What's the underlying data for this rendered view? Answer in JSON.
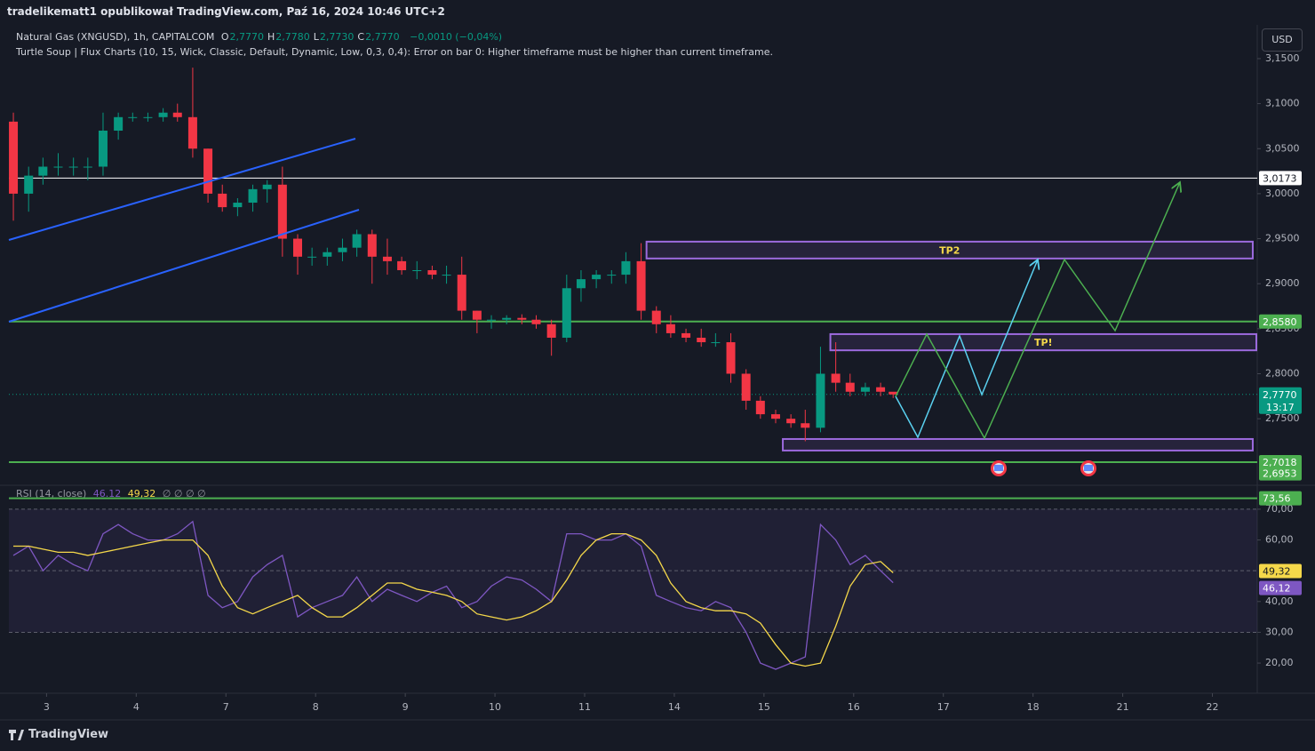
{
  "header": {
    "publisher": "tradelikematt1 opublikował TradingView.com, Paź 16, 2024 10:46 UTC+2",
    "currency": "USD",
    "brand": "TradingView"
  },
  "chart_data": [
    {
      "type": "candlestick",
      "title": "Natural Gas (XNGUSD), 1h, CAPITALCOM",
      "legend": [
        {
          "key": "O",
          "value": "2,7770"
        },
        {
          "key": "H",
          "value": "2,7780"
        },
        {
          "key": "L",
          "value": "2,7730"
        },
        {
          "key": "C",
          "value": "2,7770"
        }
      ],
      "change": "−0,0010 (−0,04%)",
      "indicator": "Turtle Soup | Flux Charts (10, 15, Wick, Classic, Default, Dynamic, Low, 0,3, 0,4): Error on bar 0: Higher timeframe must be higher than current timeframe.",
      "up_color": "#089981",
      "down_color": "#f23645",
      "x": [
        -0.37,
        -0.2,
        -0.04,
        0.13,
        0.3,
        0.46,
        0.63,
        0.8,
        0.96,
        1.13,
        1.3,
        1.46,
        1.63,
        1.8,
        1.96,
        2.13,
        2.3,
        2.46,
        2.63,
        2.8,
        2.96,
        3.13,
        3.3,
        3.46,
        3.63,
        3.8,
        3.96,
        4.13,
        4.3,
        4.46,
        4.63,
        4.8,
        4.96,
        5.13,
        5.3,
        5.46,
        5.63,
        5.8,
        5.96,
        6.13,
        6.3,
        6.46,
        6.63,
        6.8,
        6.96,
        7.13,
        7.3,
        7.46,
        7.63,
        7.8,
        7.96,
        8.13,
        8.3,
        8.46,
        8.63,
        8.8,
        8.96,
        9.13,
        9.3,
        9.44
      ],
      "open": [
        3.08,
        3.0,
        3.02,
        3.03,
        3.03,
        3.03,
        3.03,
        3.07,
        3.085,
        3.085,
        3.085,
        3.09,
        3.085,
        3.05,
        3.0,
        2.985,
        2.99,
        3.005,
        3.01,
        2.95,
        2.93,
        2.93,
        2.935,
        2.94,
        2.955,
        2.93,
        2.925,
        2.915,
        2.915,
        2.91,
        2.91,
        2.87,
        2.86,
        2.86,
        2.862,
        2.86,
        2.855,
        2.84,
        2.895,
        2.905,
        2.91,
        2.91,
        2.925,
        2.87,
        2.855,
        2.845,
        2.84,
        2.835,
        2.835,
        2.8,
        2.77,
        2.755,
        2.75,
        2.745,
        2.74,
        2.8,
        2.79,
        2.78,
        2.785,
        2.78
      ],
      "high": [
        3.09,
        3.03,
        3.04,
        3.045,
        3.04,
        3.04,
        3.09,
        3.09,
        3.09,
        3.09,
        3.095,
        3.1,
        3.14,
        3.05,
        3.01,
        2.995,
        3.01,
        3.015,
        3.03,
        2.955,
        2.94,
        2.94,
        2.95,
        2.96,
        2.96,
        2.95,
        2.93,
        2.925,
        2.92,
        2.92,
        2.93,
        2.87,
        2.865,
        2.865,
        2.866,
        2.865,
        2.86,
        2.91,
        2.915,
        2.915,
        2.915,
        2.935,
        2.945,
        2.875,
        2.865,
        2.85,
        2.85,
        2.845,
        2.845,
        2.805,
        2.775,
        2.76,
        2.755,
        2.76,
        2.83,
        2.835,
        2.8,
        2.79,
        2.79,
        2.778
      ],
      "low": [
        2.97,
        2.98,
        3.01,
        3.02,
        3.02,
        3.015,
        3.02,
        3.06,
        3.08,
        3.08,
        3.08,
        3.08,
        3.04,
        2.99,
        2.98,
        2.975,
        2.98,
        2.99,
        2.93,
        2.91,
        2.92,
        2.92,
        2.925,
        2.93,
        2.9,
        2.91,
        2.91,
        2.905,
        2.905,
        2.9,
        2.86,
        2.845,
        2.85,
        2.855,
        2.855,
        2.85,
        2.82,
        2.835,
        2.88,
        2.895,
        2.9,
        2.9,
        2.86,
        2.845,
        2.84,
        2.835,
        2.83,
        2.83,
        2.79,
        2.76,
        2.75,
        2.745,
        2.74,
        2.725,
        2.735,
        2.78,
        2.775,
        2.775,
        2.775,
        2.773
      ],
      "close": [
        3.0,
        3.02,
        3.03,
        3.03,
        3.03,
        3.03,
        3.07,
        3.085,
        3.085,
        3.085,
        3.09,
        3.085,
        3.05,
        3.0,
        2.985,
        2.99,
        3.005,
        3.01,
        2.95,
        2.93,
        2.93,
        2.935,
        2.94,
        2.955,
        2.93,
        2.925,
        2.915,
        2.915,
        2.91,
        2.91,
        2.87,
        2.86,
        2.86,
        2.862,
        2.86,
        2.855,
        2.84,
        2.895,
        2.905,
        2.91,
        2.91,
        2.925,
        2.87,
        2.855,
        2.845,
        2.84,
        2.835,
        2.835,
        2.8,
        2.77,
        2.755,
        2.75,
        2.745,
        2.74,
        2.8,
        2.79,
        2.78,
        2.785,
        2.78,
        2.777
      ],
      "xlim": [
        -0.42,
        13.5
      ],
      "xticks": [
        {
          "value": 0,
          "label": "3"
        },
        {
          "value": 1,
          "label": "4"
        },
        {
          "value": 2,
          "label": "7"
        },
        {
          "value": 3,
          "label": "8"
        },
        {
          "value": 4,
          "label": "9"
        },
        {
          "value": 5,
          "label": "10"
        },
        {
          "value": 6,
          "label": "11"
        },
        {
          "value": 7,
          "label": "14"
        },
        {
          "value": 8,
          "label": "15"
        },
        {
          "value": 9,
          "label": "16"
        },
        {
          "value": 10,
          "label": "17"
        },
        {
          "value": 11,
          "label": "18"
        },
        {
          "value": 12,
          "label": "21"
        },
        {
          "value": 13,
          "label": "22"
        }
      ],
      "ylim": [
        2.6771,
        3.1855
      ],
      "yticks": [
        {
          "value": 3.15,
          "label": "3,1500"
        },
        {
          "value": 3.1,
          "label": "3,1000"
        },
        {
          "value": 3.05,
          "label": "3,0500"
        },
        {
          "value": 3.0,
          "label": "3,0000"
        },
        {
          "value": 2.95,
          "label": "2,9500"
        },
        {
          "value": 2.9,
          "label": "2,9000"
        },
        {
          "value": 2.85,
          "label": "2,8500"
        },
        {
          "value": 2.8,
          "label": "2,8000"
        },
        {
          "value": 2.75,
          "label": "2,7500"
        }
      ],
      "levels": [
        {
          "value": 3.0173,
          "label": "3,0173",
          "color": "#ffffff"
        },
        {
          "value": 2.858,
          "label": "2,8580",
          "color": "#4caf50"
        },
        {
          "value": 2.7018,
          "label": "2,7018",
          "color": "#4caf50"
        }
      ],
      "extra_label": {
        "value": 2.6953,
        "label": "2,6953",
        "color": "#4caf50"
      },
      "current": {
        "value": 2.777,
        "label": "2,7770",
        "countdown": "13:17",
        "color": "#089981"
      },
      "zones": [
        {
          "label": "TP2",
          "top": 2.9467,
          "bottom": 2.928,
          "x0": 6.69,
          "x1": 13.45
        },
        {
          "label": "TP!",
          "top": 2.844,
          "bottom": 2.826,
          "x0": 8.74,
          "x1": 13.49
        },
        {
          "top": 2.7275,
          "bottom": 2.7147,
          "x0": 8.21,
          "x1": 13.45
        }
      ],
      "zone_color": "#9c6ade"
    },
    {
      "type": "line",
      "title": "RSI (14, close)",
      "legend_values": [
        "46.12",
        "49,32",
        "∅ ∅ ∅ ∅"
      ],
      "series": [
        {
          "name": "RSI",
          "color": "#7e57c2",
          "label": "46,12",
          "values": [
            55,
            58,
            50,
            55,
            52,
            50,
            62,
            65,
            62,
            60,
            60,
            62,
            66,
            42,
            38,
            40,
            48,
            52,
            55,
            35,
            38,
            40,
            42,
            48,
            40,
            44,
            42,
            40,
            43,
            45,
            38,
            40,
            45,
            48,
            47,
            44,
            40,
            62,
            62,
            60,
            60,
            62,
            58,
            42,
            40,
            38,
            37,
            40,
            38,
            30,
            20,
            18,
            20,
            22,
            65,
            60,
            52,
            55,
            50,
            46.12
          ]
        },
        {
          "name": "RSI-based MA",
          "color": "#f5d84a",
          "label": "49,32",
          "values": [
            58,
            58,
            57,
            56,
            56,
            55,
            56,
            57,
            58,
            59,
            60,
            60,
            60,
            55,
            45,
            38,
            36,
            38,
            40,
            42,
            38,
            35,
            35,
            38,
            42,
            46,
            46,
            44,
            43,
            42,
            40,
            36,
            35,
            34,
            35,
            37,
            40,
            47,
            55,
            60,
            62,
            62,
            60,
            55,
            46,
            40,
            38,
            37,
            37,
            36,
            33,
            26,
            20,
            19,
            20,
            32,
            45,
            52,
            53,
            49.32
          ]
        }
      ],
      "ylim": [
        10.2,
        77.2
      ],
      "yticks": [
        {
          "value": 70,
          "label": "70,00"
        },
        {
          "value": 60,
          "label": "60,00"
        },
        {
          "value": 40,
          "label": "40,00"
        },
        {
          "value": 30,
          "label": "30,00"
        },
        {
          "value": 20,
          "label": "20,00"
        }
      ],
      "bands": [
        70,
        50,
        30
      ],
      "level": {
        "value": 73.56,
        "label": "73,56",
        "color": "#4caf50"
      }
    }
  ]
}
